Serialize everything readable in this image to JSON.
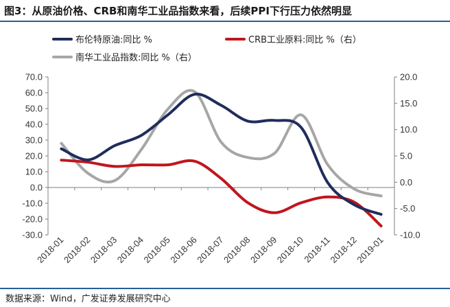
{
  "figure": {
    "title": "图3：从原油价格、CRB和南华工业品指数来看，后续PPI下行压力依然明显",
    "source": "数据来源：Wind，广发证券发展研究中心"
  },
  "chart_data": {
    "type": "line",
    "categories": [
      "2018-01",
      "2018-02",
      "2018-03",
      "2018-04",
      "2018-05",
      "2018-06",
      "2018-07",
      "2018-08",
      "2018-09",
      "2018-10",
      "2018-11",
      "2018-12",
      "2019-01"
    ],
    "left_axis": {
      "ylim": [
        -30,
        70
      ],
      "ticks": [
        "70.0",
        "60.0",
        "50.0",
        "40.0",
        "30.0",
        "20.0",
        "10.0",
        "0.0",
        "-10.0",
        "-20.0",
        "-30.0"
      ]
    },
    "right_axis": {
      "ylim": [
        -10,
        20
      ],
      "ticks": [
        "20.0",
        "15.0",
        "10.0",
        "5.0",
        "0.0",
        "-5.0",
        "-10.0"
      ]
    },
    "grid": false,
    "legend_position": "top",
    "series": [
      {
        "name": "布伦特原油:同比 %",
        "axis": "left",
        "color": "#1f2d5c",
        "values": [
          24.5,
          17.5,
          26.5,
          33,
          46,
          59,
          52,
          42,
          42.5,
          38,
          3,
          -11,
          -17
        ]
      },
      {
        "name": "CRB工业原料:同比 %（右）",
        "axis": "right",
        "color": "#c0161d",
        "values": [
          4.2,
          3.8,
          3.0,
          3.3,
          3.3,
          4.0,
          0.7,
          -3.9,
          -5.8,
          -3.9,
          -2.8,
          -3.8,
          -8.3
        ]
      },
      {
        "name": "南华工业品指数:同比 %（右）",
        "axis": "right",
        "color": "#a6a6a6",
        "values": [
          7.4,
          1.7,
          0.3,
          6.2,
          13.9,
          17.2,
          7.6,
          4.7,
          5.5,
          12.8,
          3.3,
          -1.3,
          -2.6
        ]
      }
    ]
  }
}
